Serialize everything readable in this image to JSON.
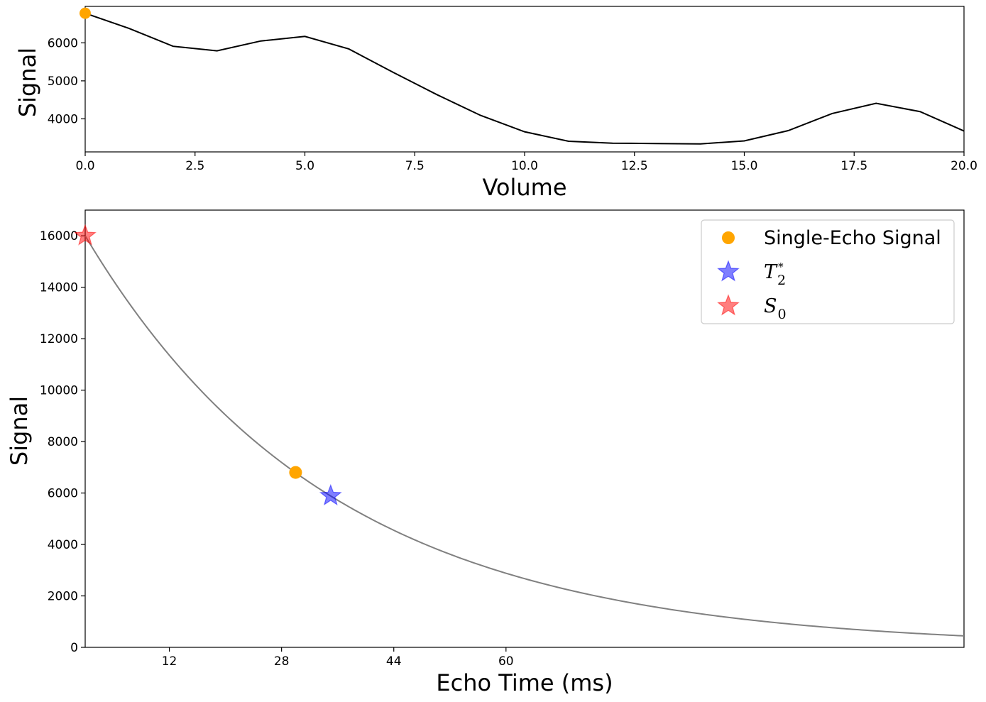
{
  "chart_data": [
    {
      "type": "line",
      "xlabel": "Volume",
      "ylabel": "Signal",
      "xlim": [
        0,
        20
      ],
      "ylim": [
        3130,
        6960
      ],
      "xticks": [
        0.0,
        2.5,
        5.0,
        7.5,
        10.0,
        12.5,
        15.0,
        17.5,
        20.0
      ],
      "xtick_labels": [
        "0.0",
        "2.5",
        "5.0",
        "7.5",
        "10.0",
        "12.5",
        "15.0",
        "17.5",
        "20.0"
      ],
      "yticks": [
        4000,
        5000,
        6000
      ],
      "ytick_labels": [
        "4000",
        "5000",
        "6000"
      ],
      "grid": false,
      "series": [
        {
          "color": "#000000",
          "x": [
            0,
            1,
            2,
            3,
            4,
            5,
            6,
            7,
            8,
            9,
            10,
            11,
            12,
            13,
            14,
            15,
            16,
            17,
            18,
            19,
            20
          ],
          "y": [
            6780,
            6380,
            5910,
            5790,
            6050,
            6170,
            5840,
            5230,
            4640,
            4090,
            3660,
            3410,
            3360,
            3350,
            3340,
            3420,
            3690,
            4140,
            4410,
            4190,
            3680
          ]
        }
      ],
      "highlight_point": {
        "x": 0,
        "y": 6780,
        "color": "#ffa500"
      }
    },
    {
      "type": "line",
      "xlabel": "Echo Time (ms)",
      "ylabel": "Signal",
      "xlim": [
        0.0,
        125.3
      ],
      "ylim": [
        0,
        17000
      ],
      "xticks": [
        12,
        28,
        44,
        60
      ],
      "xtick_labels": [
        "12",
        "28",
        "44",
        "60"
      ],
      "yticks": [
        0,
        2000,
        4000,
        6000,
        8000,
        10000,
        12000,
        14000,
        16000
      ],
      "ytick_labels": [
        "0",
        "2000",
        "4000",
        "6000",
        "8000",
        "10000",
        "12000",
        "14000",
        "16000"
      ],
      "grid": false,
      "decay_curve": {
        "S0": 16000,
        "T2star": 35,
        "color": "#808080"
      },
      "points": [
        {
          "name": "Single-Echo Signal",
          "marker": "circle",
          "x": 30,
          "y": 6800,
          "color": "#ffa500",
          "opacity": 1
        },
        {
          "name": "T2*",
          "marker": "star",
          "x": 35,
          "y": 5890,
          "color": "#0000ff",
          "opacity": 0.5
        },
        {
          "name": "S0",
          "marker": "star",
          "x": 0,
          "y": 16000,
          "color": "#ff0000",
          "opacity": 0.5
        }
      ],
      "legend": {
        "placement": "upper right",
        "entries": [
          {
            "label": "Single-Echo Signal",
            "marker": "circle",
            "color": "#ffa500"
          },
          {
            "label_main": "T",
            "label_sub": "2",
            "label_sup": "*",
            "marker": "star",
            "color": "#0000ff"
          },
          {
            "label_main": "S",
            "label_sub": "0",
            "marker": "star",
            "color": "#ff0000"
          }
        ]
      }
    }
  ]
}
